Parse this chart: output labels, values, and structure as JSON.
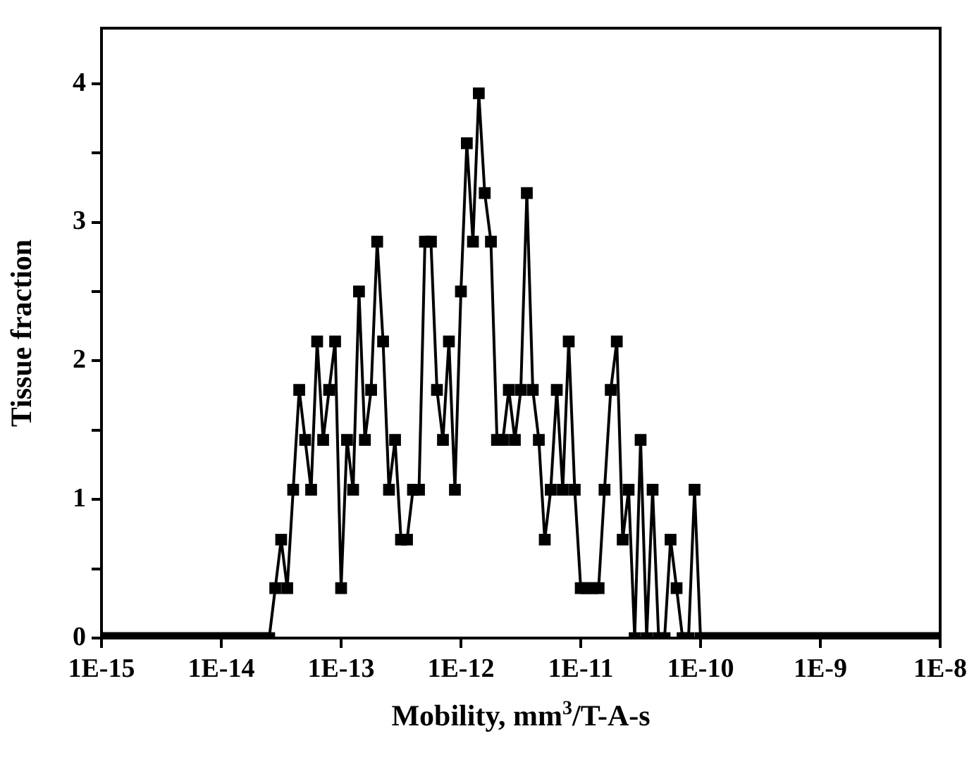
{
  "chart_data": {
    "type": "line",
    "xlabel": "Mobility, mm$^{3}$/T-A-s",
    "ylabel": "Tissue fraction",
    "log": "x",
    "marker": "square",
    "line_style": "solid",
    "color": "#000000",
    "x": [
      1e-15,
      1.12e-15,
      1.26e-15,
      1.41e-15,
      1.58e-15,
      1.78e-15,
      2e-15,
      2.24e-15,
      2.51e-15,
      2.82e-15,
      3.16e-15,
      3.55e-15,
      3.98e-15,
      4.47e-15,
      5.01e-15,
      5.62e-15,
      6.31e-15,
      7.08e-15,
      7.94e-15,
      8.91e-15,
      1e-14,
      1.12e-14,
      1.26e-14,
      1.41e-14,
      1.58e-14,
      1.78e-14,
      2e-14,
      2.24e-14,
      2.51e-14,
      2.82e-14,
      3.16e-14,
      3.55e-14,
      3.98e-14,
      4.47e-14,
      5.01e-14,
      5.62e-14,
      6.31e-14,
      7.08e-14,
      7.94e-14,
      8.91e-14,
      1e-13,
      1.12e-13,
      1.26e-13,
      1.41e-13,
      1.58e-13,
      1.78e-13,
      2e-13,
      2.24e-13,
      2.51e-13,
      2.82e-13,
      3.16e-13,
      3.55e-13,
      3.98e-13,
      4.47e-13,
      5.01e-13,
      5.62e-13,
      6.31e-13,
      7.08e-13,
      7.94e-13,
      8.91e-13,
      1e-12,
      1.12e-12,
      1.26e-12,
      1.41e-12,
      1.58e-12,
      1.78e-12,
      2e-12,
      2.24e-12,
      2.51e-12,
      2.82e-12,
      3.16e-12,
      3.55e-12,
      3.98e-12,
      4.47e-12,
      5.01e-12,
      5.62e-12,
      6.31e-12,
      7.08e-12,
      7.94e-12,
      8.91e-12,
      1e-11,
      1.12e-11,
      1.26e-11,
      1.41e-11,
      1.58e-11,
      1.78e-11,
      2e-11,
      2.24e-11,
      2.51e-11,
      2.82e-11,
      3.16e-11,
      3.55e-11,
      3.98e-11,
      4.47e-11,
      5.01e-11,
      5.62e-11,
      6.31e-11,
      7.08e-11,
      7.94e-11,
      8.91e-11,
      1e-10,
      1.12e-10,
      1.26e-10,
      1.41e-10,
      1.58e-10,
      1.78e-10,
      2e-10,
      2.24e-10,
      2.51e-10,
      2.82e-10,
      3.16e-10,
      3.55e-10,
      3.98e-10,
      4.47e-10,
      5.01e-10,
      5.62e-10,
      6.31e-10,
      7.08e-10,
      7.94e-10,
      8.91e-10,
      1e-09,
      1.12e-09,
      1.26e-09,
      1.41e-09,
      1.58e-09,
      1.78e-09,
      2e-09,
      2.24e-09,
      2.51e-09,
      2.82e-09,
      3.16e-09,
      3.55e-09,
      3.98e-09,
      4.47e-09,
      5.01e-09,
      5.62e-09,
      6.31e-09,
      7.08e-09,
      7.94e-09,
      8.91e-09,
      1e-08
    ],
    "values": [
      0,
      0,
      0,
      0,
      0,
      0,
      0,
      0,
      0,
      0,
      0,
      0,
      0,
      0,
      0,
      0,
      0,
      0,
      0,
      0,
      0,
      0,
      0,
      0,
      0,
      0,
      0,
      0,
      0,
      0.36,
      0.71,
      0.36,
      1.07,
      1.79,
      1.43,
      1.07,
      2.14,
      1.43,
      1.79,
      2.14,
      0.36,
      1.43,
      1.07,
      2.5,
      1.43,
      1.79,
      2.86,
      2.14,
      1.07,
      1.43,
      0.71,
      0.71,
      1.07,
      1.07,
      2.86,
      2.86,
      1.79,
      1.43,
      2.14,
      1.07,
      2.5,
      3.57,
      2.86,
      3.93,
      3.21,
      2.86,
      1.43,
      1.43,
      1.79,
      1.43,
      1.79,
      3.21,
      1.79,
      1.43,
      0.71,
      1.07,
      1.79,
      1.07,
      2.14,
      1.07,
      0.36,
      0.36,
      0.36,
      0.36,
      1.07,
      1.79,
      2.14,
      0.71,
      1.07,
      0,
      1.43,
      0,
      1.07,
      0,
      0,
      0.71,
      0.36,
      0,
      0,
      1.07,
      0,
      0,
      0,
      0,
      0,
      0,
      0,
      0,
      0,
      0,
      0,
      0,
      0,
      0,
      0,
      0,
      0,
      0,
      0,
      0,
      0,
      0,
      0,
      0,
      0,
      0,
      0,
      0,
      0,
      0,
      0,
      0,
      0,
      0,
      0,
      0,
      0,
      0,
      0,
      0,
      0
    ],
    "xlim": [
      1e-15,
      1e-08
    ],
    "xticks": [
      {
        "value": 1e-15,
        "label": "1E-15"
      },
      {
        "value": 1e-14,
        "label": "1E-14"
      },
      {
        "value": 1e-13,
        "label": "1E-13"
      },
      {
        "value": 1e-12,
        "label": "1E-12"
      },
      {
        "value": 1e-11,
        "label": "1E-11"
      },
      {
        "value": 1e-10,
        "label": "1E-10"
      },
      {
        "value": 1e-09,
        "label": "1E-9"
      },
      {
        "value": 1e-08,
        "label": "1E-8"
      }
    ],
    "ylim": [
      0,
      4.4
    ],
    "yticks": [
      0,
      {
        "value": 0.5,
        "label": null
      },
      1,
      {
        "value": 1.5,
        "label": null
      },
      2,
      {
        "value": 2.5,
        "label": null
      },
      3,
      {
        "value": 3.5,
        "label": null
      },
      4
    ]
  }
}
